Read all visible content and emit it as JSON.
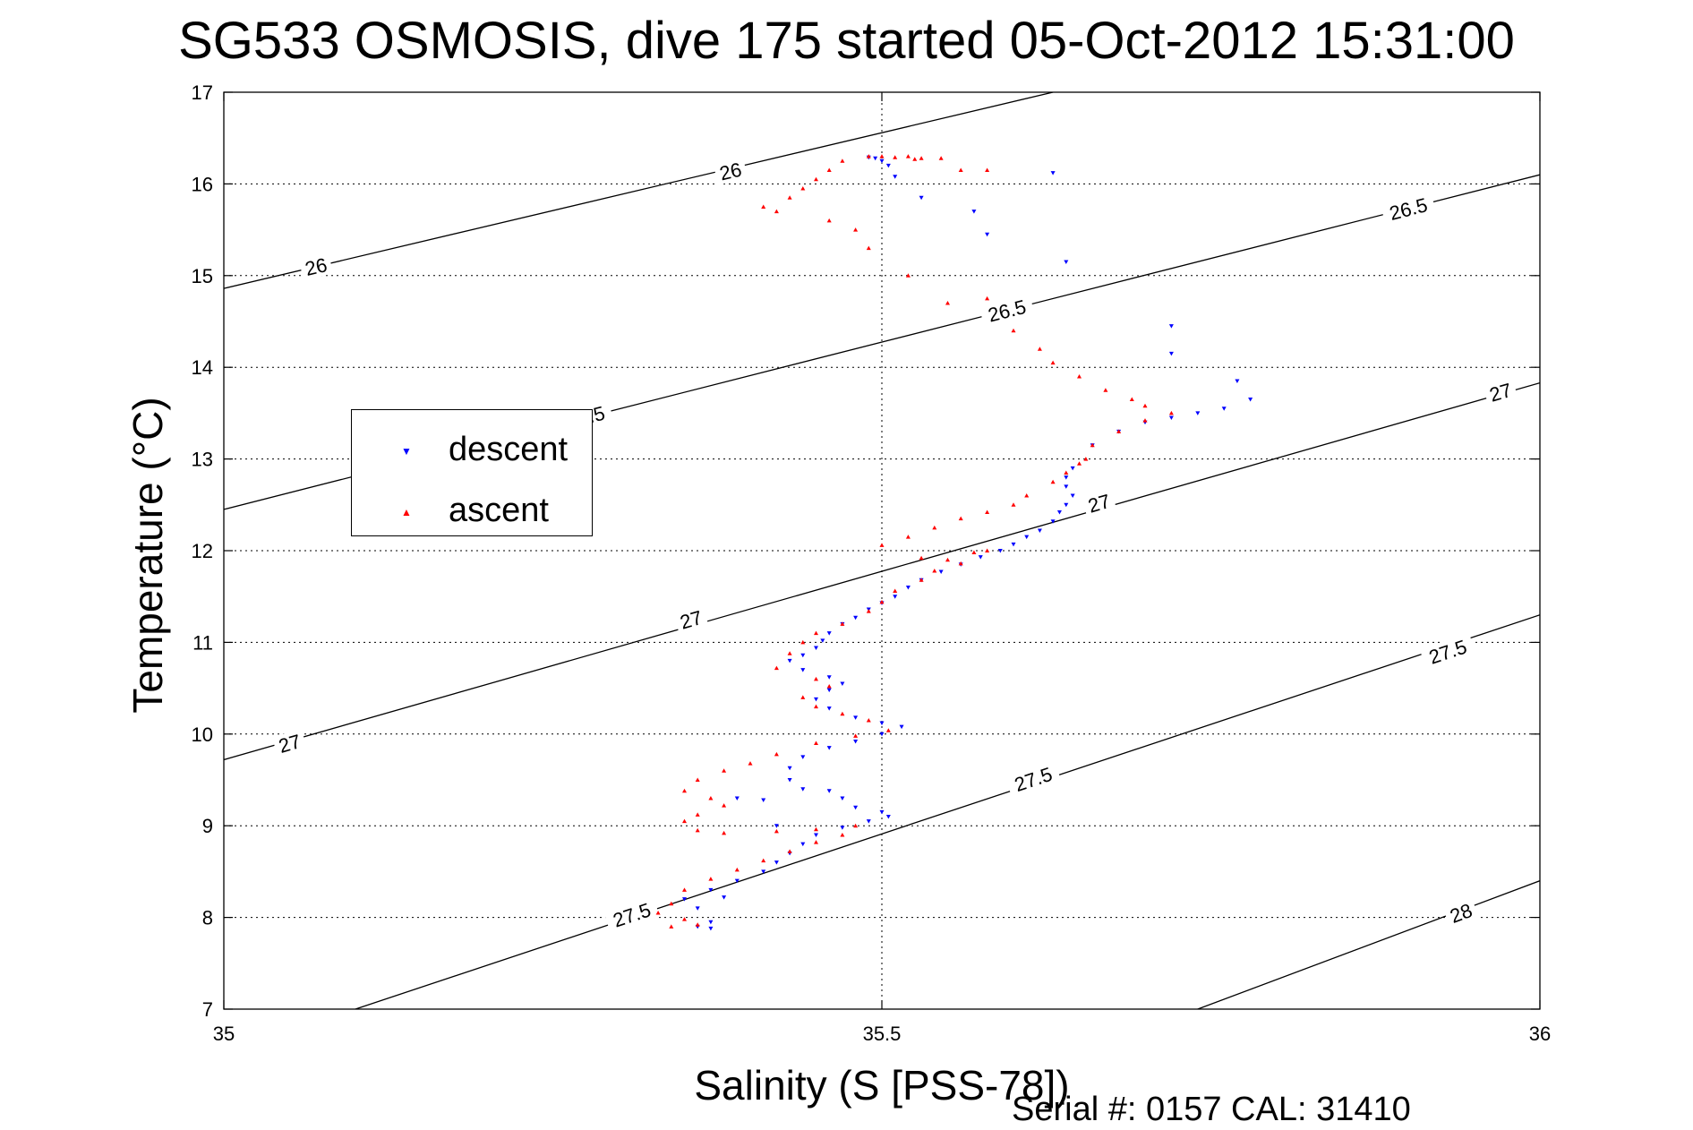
{
  "chart_data": {
    "type": "scatter",
    "title": "SG533 OSMOSIS, dive 175 started 05-Oct-2012 15:31:00",
    "xlabel": "Salinity (S [PSS-78])",
    "ylabel": "Temperature (°C)",
    "xlim": [
      35,
      36
    ],
    "ylim": [
      7,
      17
    ],
    "x_ticks": [
      "35",
      "35.5",
      "36"
    ],
    "y_ticks": [
      "7",
      "8",
      "9",
      "10",
      "11",
      "12",
      "13",
      "14",
      "15",
      "16",
      "17"
    ],
    "grid": true,
    "legend_position": "left",
    "footer": "Serial #: 0157  CAL: 31410",
    "contours": [
      {
        "label": "26",
        "points": [
          [
            35.0,
            14.86
          ],
          [
            35.63,
            17.0
          ]
        ],
        "label_positions": [
          [
            35.07,
            15.1
          ],
          [
            35.385,
            16.14
          ]
        ]
      },
      {
        "label": "26.5",
        "points": [
          [
            35.0,
            12.45
          ],
          [
            36.0,
            16.1
          ]
        ],
        "label_positions": [
          [
            35.275,
            13.46
          ],
          [
            35.595,
            14.62
          ],
          [
            35.9,
            15.73
          ]
        ]
      },
      {
        "label": "27",
        "points": [
          [
            35.0,
            9.72
          ],
          [
            36.0,
            13.83
          ]
        ],
        "label_positions": [
          [
            35.05,
            9.9
          ],
          [
            35.355,
            11.25
          ],
          [
            35.665,
            12.52
          ],
          [
            35.97,
            13.73
          ]
        ]
      },
      {
        "label": "27.5",
        "points": [
          [
            35.1,
            7.0
          ],
          [
            36.0,
            11.3
          ]
        ],
        "label_positions": [
          [
            35.31,
            8.03
          ],
          [
            35.615,
            9.51
          ],
          [
            35.93,
            10.9
          ]
        ]
      },
      {
        "label": "28",
        "points": [
          [
            35.74,
            7.0
          ],
          [
            36.0,
            8.4
          ]
        ],
        "label_positions": [
          [
            35.94,
            8.05
          ]
        ]
      }
    ],
    "series": [
      {
        "name": "descent",
        "color": "#0000ff",
        "marker": "triangle-down",
        "points": [
          [
            35.49,
            16.29
          ],
          [
            35.495,
            16.28
          ],
          [
            35.5,
            16.25
          ],
          [
            35.505,
            16.2
          ],
          [
            35.51,
            16.08
          ],
          [
            35.53,
            15.85
          ],
          [
            35.57,
            15.7
          ],
          [
            35.63,
            16.12
          ],
          [
            35.58,
            15.45
          ],
          [
            35.64,
            15.15
          ],
          [
            35.72,
            14.45
          ],
          [
            35.72,
            14.15
          ],
          [
            35.77,
            13.85
          ],
          [
            35.78,
            13.65
          ],
          [
            35.76,
            13.55
          ],
          [
            35.74,
            13.5
          ],
          [
            35.72,
            13.45
          ],
          [
            35.7,
            13.4
          ],
          [
            35.68,
            13.3
          ],
          [
            35.66,
            13.15
          ],
          [
            35.645,
            12.9
          ],
          [
            35.64,
            12.8
          ],
          [
            35.64,
            12.7
          ],
          [
            35.645,
            12.6
          ],
          [
            35.64,
            12.5
          ],
          [
            35.635,
            12.42
          ],
          [
            35.63,
            12.32
          ],
          [
            35.62,
            12.22
          ],
          [
            35.61,
            12.15
          ],
          [
            35.6,
            12.07
          ],
          [
            35.59,
            12.0
          ],
          [
            35.575,
            11.93
          ],
          [
            35.56,
            11.85
          ],
          [
            35.545,
            11.77
          ],
          [
            35.53,
            11.68
          ],
          [
            35.52,
            11.6
          ],
          [
            35.51,
            11.5
          ],
          [
            35.5,
            11.43
          ],
          [
            35.49,
            11.36
          ],
          [
            35.48,
            11.27
          ],
          [
            35.47,
            11.2
          ],
          [
            35.46,
            11.1
          ],
          [
            35.455,
            11.02
          ],
          [
            35.45,
            10.94
          ],
          [
            35.44,
            10.86
          ],
          [
            35.43,
            10.8
          ],
          [
            35.44,
            10.7
          ],
          [
            35.46,
            10.62
          ],
          [
            35.47,
            10.55
          ],
          [
            35.46,
            10.48
          ],
          [
            35.45,
            10.38
          ],
          [
            35.46,
            10.28
          ],
          [
            35.48,
            10.18
          ],
          [
            35.5,
            10.12
          ],
          [
            35.515,
            10.08
          ],
          [
            35.5,
            10.0
          ],
          [
            35.48,
            9.92
          ],
          [
            35.46,
            9.85
          ],
          [
            35.44,
            9.75
          ],
          [
            35.43,
            9.63
          ],
          [
            35.43,
            9.5
          ],
          [
            35.44,
            9.4
          ],
          [
            35.46,
            9.38
          ],
          [
            35.47,
            9.3
          ],
          [
            35.48,
            9.2
          ],
          [
            35.5,
            9.15
          ],
          [
            35.505,
            9.1
          ],
          [
            35.49,
            9.05
          ],
          [
            35.47,
            8.98
          ],
          [
            35.45,
            8.9
          ],
          [
            35.44,
            8.8
          ],
          [
            35.43,
            8.7
          ],
          [
            35.42,
            8.6
          ],
          [
            35.41,
            8.5
          ],
          [
            35.39,
            8.4
          ],
          [
            35.37,
            8.3
          ],
          [
            35.35,
            8.2
          ],
          [
            35.38,
            8.22
          ],
          [
            35.36,
            8.1
          ],
          [
            35.37,
            7.95
          ],
          [
            35.36,
            7.9
          ],
          [
            35.37,
            7.88
          ],
          [
            35.41,
            9.28
          ],
          [
            35.42,
            9.0
          ],
          [
            35.39,
            9.3
          ]
        ]
      },
      {
        "name": "ascent",
        "color": "#ff0000",
        "marker": "triangle-up",
        "points": [
          [
            35.49,
            16.3
          ],
          [
            35.5,
            16.3
          ],
          [
            35.51,
            16.29
          ],
          [
            35.525,
            16.27
          ],
          [
            35.47,
            16.25
          ],
          [
            35.46,
            16.15
          ],
          [
            35.45,
            16.05
          ],
          [
            35.44,
            15.95
          ],
          [
            35.43,
            15.85
          ],
          [
            35.42,
            15.7
          ],
          [
            35.41,
            15.75
          ],
          [
            35.46,
            15.6
          ],
          [
            35.48,
            15.5
          ],
          [
            35.49,
            15.3
          ],
          [
            35.52,
            15.0
          ],
          [
            35.55,
            14.7
          ],
          [
            35.58,
            14.75
          ],
          [
            35.6,
            14.4
          ],
          [
            35.62,
            14.2
          ],
          [
            35.63,
            14.05
          ],
          [
            35.65,
            13.9
          ],
          [
            35.67,
            13.75
          ],
          [
            35.69,
            13.65
          ],
          [
            35.7,
            13.58
          ],
          [
            35.72,
            13.5
          ],
          [
            35.7,
            13.42
          ],
          [
            35.68,
            13.3
          ],
          [
            35.66,
            13.15
          ],
          [
            35.655,
            13.0
          ],
          [
            35.65,
            12.95
          ],
          [
            35.64,
            12.85
          ],
          [
            35.63,
            12.75
          ],
          [
            35.61,
            12.6
          ],
          [
            35.6,
            12.5
          ],
          [
            35.58,
            12.42
          ],
          [
            35.56,
            12.35
          ],
          [
            35.54,
            12.25
          ],
          [
            35.52,
            12.15
          ],
          [
            35.5,
            12.06
          ],
          [
            35.53,
            11.92
          ],
          [
            35.55,
            11.9
          ],
          [
            35.57,
            11.98
          ],
          [
            35.58,
            12.0
          ],
          [
            35.56,
            11.86
          ],
          [
            35.54,
            11.78
          ],
          [
            35.53,
            11.68
          ],
          [
            35.51,
            11.56
          ],
          [
            35.5,
            11.44
          ],
          [
            35.49,
            11.34
          ],
          [
            35.47,
            11.2
          ],
          [
            35.45,
            11.1
          ],
          [
            35.44,
            11.0
          ],
          [
            35.43,
            10.88
          ],
          [
            35.42,
            10.72
          ],
          [
            35.45,
            10.6
          ],
          [
            35.46,
            10.52
          ],
          [
            35.44,
            10.4
          ],
          [
            35.45,
            10.3
          ],
          [
            35.47,
            10.22
          ],
          [
            35.49,
            10.15
          ],
          [
            35.505,
            10.04
          ],
          [
            35.48,
            9.98
          ],
          [
            35.45,
            9.9
          ],
          [
            35.42,
            9.78
          ],
          [
            35.4,
            9.68
          ],
          [
            35.38,
            9.6
          ],
          [
            35.36,
            9.5
          ],
          [
            35.35,
            9.38
          ],
          [
            35.37,
            9.3
          ],
          [
            35.38,
            9.22
          ],
          [
            35.36,
            9.12
          ],
          [
            35.35,
            9.05
          ],
          [
            35.36,
            8.95
          ],
          [
            35.38,
            8.92
          ],
          [
            35.42,
            8.94
          ],
          [
            35.45,
            8.96
          ],
          [
            35.48,
            9.0
          ],
          [
            35.47,
            8.9
          ],
          [
            35.45,
            8.82
          ],
          [
            35.43,
            8.72
          ],
          [
            35.41,
            8.62
          ],
          [
            35.39,
            8.52
          ],
          [
            35.37,
            8.42
          ],
          [
            35.35,
            8.3
          ],
          [
            35.34,
            8.15
          ],
          [
            35.33,
            8.05
          ],
          [
            35.35,
            7.98
          ],
          [
            35.36,
            7.92
          ],
          [
            35.34,
            7.9
          ],
          [
            35.58,
            16.15
          ],
          [
            35.56,
            16.15
          ],
          [
            35.52,
            16.3
          ],
          [
            35.53,
            16.28
          ],
          [
            35.545,
            16.28
          ]
        ]
      }
    ]
  },
  "legend": {
    "items": [
      {
        "label": "descent",
        "symbol": "▼",
        "color": "#0000ff"
      },
      {
        "label": "ascent",
        "symbol": "▲",
        "color": "#ff0000"
      }
    ]
  }
}
